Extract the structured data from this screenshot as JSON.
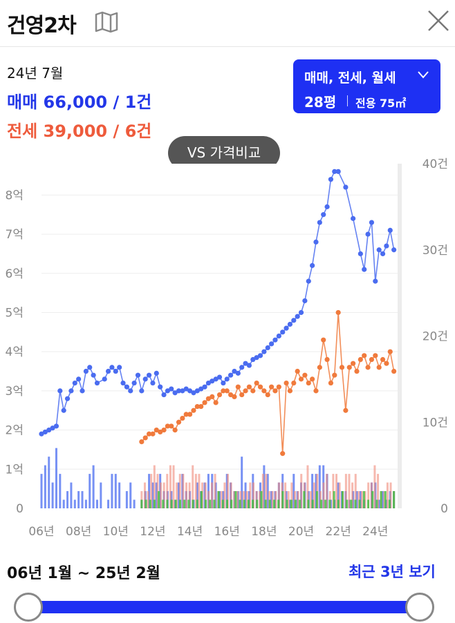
{
  "header": {
    "title": "건영2차"
  },
  "summary": {
    "period": "24년 7월",
    "sale": "매매 66,000 / 1건",
    "jeonse": "전세 39,000 / 6건"
  },
  "filter": {
    "types": "매매, 전세, 월세",
    "size": "28평",
    "area": "전용 75㎡"
  },
  "compare_button": "VS 가격비교",
  "range": {
    "label": "06년 1월 ~ 25년 2월",
    "recent": "최근 3년 보기",
    "start": 0,
    "end": 1
  },
  "colors": {
    "sale": "#4a6cf0",
    "jeonse": "#f07a3c",
    "monthly": "#3fbf3f",
    "accent": "#1e30f3"
  },
  "chart_data": {
    "type": "line",
    "x_ticks": [
      "06년",
      "08년",
      "10년",
      "12년",
      "14년",
      "16년",
      "18년",
      "20년",
      "22년",
      "24년"
    ],
    "x_tick_years": [
      2006,
      2008,
      2010,
      2012,
      2014,
      2016,
      2018,
      2020,
      2022,
      2024
    ],
    "xlim": [
      2006,
      2025.2
    ],
    "y_left_ticks": [
      "0",
      "1억",
      "2억",
      "3억",
      "4억",
      "5억",
      "6억",
      "7억",
      "8억"
    ],
    "ylim_left": [
      0,
      8.8
    ],
    "y_right_ticks": [
      "0",
      "10건",
      "20건",
      "30건",
      "40건"
    ],
    "ylim_right": [
      0,
      40
    ],
    "grid": true,
    "series": [
      {
        "key": "sale",
        "x": [
          2006.0,
          2006.2,
          2006.4,
          2006.6,
          2006.8,
          2007.0,
          2007.2,
          2007.4,
          2007.6,
          2007.8,
          2008.0,
          2008.2,
          2008.4,
          2008.6,
          2008.8,
          2009.0,
          2009.4,
          2009.6,
          2009.8,
          2010.0,
          2010.2,
          2010.4,
          2010.6,
          2010.8,
          2011.0,
          2011.2,
          2011.4,
          2011.6,
          2011.8,
          2012.0,
          2012.2,
          2012.4,
          2012.6,
          2012.8,
          2013.0,
          2013.2,
          2013.4,
          2013.6,
          2013.8,
          2014.0,
          2014.2,
          2014.4,
          2014.6,
          2014.8,
          2015.0,
          2015.2,
          2015.4,
          2015.6,
          2015.8,
          2016.0,
          2016.2,
          2016.4,
          2016.6,
          2016.8,
          2017.0,
          2017.2,
          2017.4,
          2017.6,
          2017.8,
          2018.0,
          2018.2,
          2018.4,
          2018.6,
          2018.8,
          2019.0,
          2019.2,
          2019.4,
          2019.6,
          2019.8,
          2020.0,
          2020.2,
          2020.4,
          2020.6,
          2020.8,
          2021.0,
          2021.2,
          2021.4,
          2021.6,
          2021.8,
          2022.0,
          2022.4,
          2022.8,
          2023.2,
          2023.4,
          2023.6,
          2023.8,
          2024.0,
          2024.2,
          2024.4,
          2024.6,
          2024.8,
          2025.0
        ],
        "y": [
          1.9,
          1.95,
          2.0,
          2.05,
          2.1,
          3.0,
          2.5,
          2.8,
          3.0,
          3.2,
          3.3,
          3.0,
          3.5,
          3.6,
          3.4,
          3.2,
          3.3,
          3.5,
          3.6,
          3.5,
          3.6,
          3.2,
          3.1,
          3.0,
          3.2,
          3.4,
          3.0,
          3.3,
          3.4,
          3.2,
          3.45,
          3.1,
          2.9,
          3.0,
          3.05,
          2.95,
          3.0,
          3.0,
          3.05,
          3.0,
          2.95,
          3.0,
          3.05,
          3.1,
          3.2,
          3.25,
          3.3,
          3.35,
          3.2,
          3.3,
          3.4,
          3.5,
          3.45,
          3.6,
          3.7,
          3.65,
          3.8,
          3.85,
          3.9,
          4.0,
          4.1,
          4.2,
          4.3,
          4.4,
          4.5,
          4.6,
          4.7,
          4.8,
          4.9,
          5.0,
          5.3,
          5.8,
          6.2,
          6.8,
          7.3,
          7.5,
          7.7,
          8.4,
          8.6,
          8.6,
          8.2,
          7.4,
          6.5,
          6.1,
          7.0,
          7.3,
          5.8,
          6.6,
          6.5,
          6.7,
          7.1,
          6.6
        ]
      },
      {
        "key": "jeonse",
        "x": [
          2011.4,
          2011.6,
          2011.8,
          2012.0,
          2012.2,
          2012.4,
          2012.6,
          2012.8,
          2013.0,
          2013.2,
          2013.4,
          2013.6,
          2013.8,
          2014.0,
          2014.2,
          2014.4,
          2014.6,
          2014.8,
          2015.0,
          2015.2,
          2015.4,
          2015.6,
          2015.8,
          2016.0,
          2016.2,
          2016.4,
          2016.6,
          2016.8,
          2017.0,
          2017.2,
          2017.4,
          2017.6,
          2017.8,
          2018.0,
          2018.2,
          2018.4,
          2018.6,
          2018.8,
          2019.0,
          2019.2,
          2019.4,
          2019.6,
          2019.8,
          2020.0,
          2020.2,
          2020.4,
          2020.6,
          2020.8,
          2021.0,
          2021.2,
          2021.4,
          2021.6,
          2021.8,
          2022.0,
          2022.2,
          2022.4,
          2022.6,
          2022.8,
          2023.0,
          2023.2,
          2023.4,
          2023.6,
          2023.8,
          2024.0,
          2024.2,
          2024.4,
          2024.6,
          2024.8,
          2025.0
        ],
        "y": [
          1.7,
          1.8,
          1.9,
          1.9,
          2.0,
          1.95,
          2.0,
          2.1,
          2.1,
          2.0,
          2.2,
          2.3,
          2.4,
          2.4,
          2.5,
          2.6,
          2.6,
          2.7,
          2.8,
          2.85,
          2.7,
          2.9,
          3.0,
          3.0,
          2.9,
          2.85,
          3.1,
          2.9,
          3.0,
          3.1,
          3.0,
          3.2,
          3.1,
          3.0,
          2.9,
          3.1,
          3.0,
          3.1,
          1.4,
          3.2,
          3.0,
          3.2,
          3.5,
          3.3,
          3.4,
          3.2,
          3.3,
          3.0,
          3.6,
          4.3,
          3.8,
          3.2,
          3.4,
          5.0,
          3.6,
          2.5,
          3.6,
          3.7,
          3.5,
          3.8,
          3.9,
          3.6,
          3.8,
          3.9,
          3.6,
          3.8,
          3.7,
          4.0,
          3.5
        ]
      }
    ],
    "volume": {
      "sale": [
        4,
        5,
        6,
        3,
        7,
        4,
        1,
        2,
        3,
        1,
        2,
        2,
        1,
        4,
        5,
        1,
        3,
        0,
        1,
        4,
        4,
        3,
        0,
        2,
        3,
        1,
        0,
        1,
        2,
        4,
        3,
        3,
        4,
        2,
        2,
        2,
        1,
        3,
        4,
        2,
        2,
        1,
        3,
        2,
        3,
        4,
        4,
        3,
        2,
        2,
        4,
        3,
        2,
        2,
        6,
        3,
        2,
        4,
        2,
        3,
        5,
        4,
        2,
        2,
        3,
        4,
        2,
        1,
        4,
        2,
        3,
        3,
        2,
        4,
        4,
        5,
        5,
        4,
        1,
        1,
        3,
        2,
        2,
        1,
        2,
        2,
        2,
        1,
        0,
        3,
        3,
        1,
        2,
        1,
        2,
        2
      ],
      "jeonse": [
        2,
        3,
        2,
        4,
        5,
        4,
        3,
        3,
        4,
        5,
        5,
        3,
        4,
        4,
        3,
        3,
        5,
        4,
        4,
        3,
        3,
        2,
        3,
        4,
        2,
        2,
        3,
        4,
        3,
        2,
        2,
        2,
        2,
        2,
        3,
        3,
        2,
        2,
        4,
        4,
        2,
        2,
        2,
        3,
        3,
        3,
        2,
        3,
        2,
        2,
        4,
        3,
        5,
        2,
        3,
        4,
        2,
        3,
        4,
        2,
        4,
        4,
        3,
        2,
        4,
        4,
        3,
        4,
        2,
        2,
        2,
        3,
        3,
        5,
        4,
        2,
        2,
        3,
        3,
        2
      ],
      "monthly": [
        1,
        1,
        1,
        1,
        2,
        1,
        1,
        1,
        1,
        1,
        1,
        1,
        1,
        1,
        2,
        1,
        1,
        1,
        2,
        1,
        1,
        1,
        2,
        1,
        1,
        1,
        1,
        1,
        2,
        1,
        1,
        1,
        1,
        2,
        1,
        1,
        1,
        1,
        2,
        1,
        1,
        2,
        1,
        1,
        1,
        2,
        1,
        2,
        1,
        1,
        1,
        1,
        2,
        1,
        2,
        1,
        2,
        2,
        1,
        2
      ]
    }
  }
}
